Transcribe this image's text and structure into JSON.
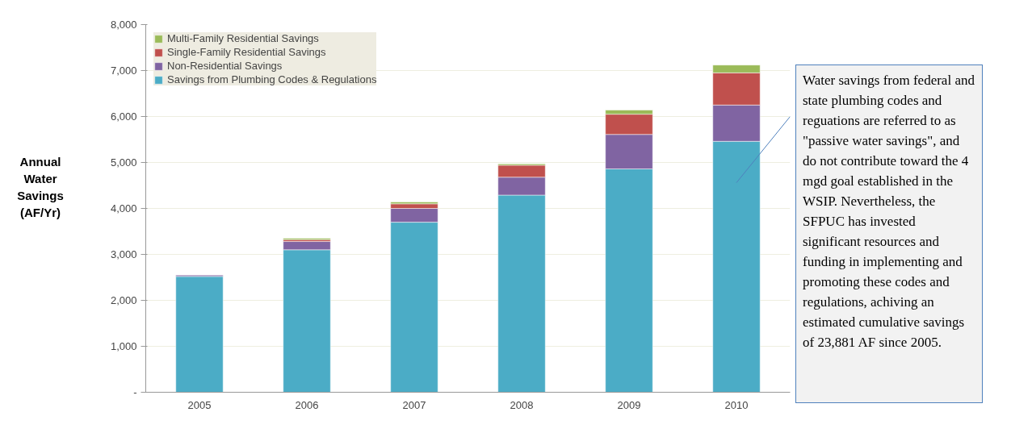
{
  "chart_data": {
    "type": "bar",
    "stacked": true,
    "ylabel": "Annual Water Savings (AF/Yr)",
    "categories": [
      "2005",
      "2006",
      "2007",
      "2008",
      "2009",
      "2010"
    ],
    "series": [
      {
        "name": "Savings from Plumbing Codes & Regulations",
        "color": "#4bacc6",
        "values": [
          2520,
          3100,
          3700,
          4290,
          4860,
          5460
        ]
      },
      {
        "name": "Non-Residential Savings",
        "color": "#8064a2",
        "values": [
          30,
          180,
          300,
          390,
          750,
          790
        ]
      },
      {
        "name": "Single-Family Residential Savings",
        "color": "#c0504d",
        "values": [
          null,
          40,
          100,
          260,
          440,
          700
        ]
      },
      {
        "name": "Multi-Family Residential Savings",
        "color": "#9bbb59",
        "values": [
          null,
          30,
          40,
          30,
          90,
          170
        ]
      }
    ],
    "ylim": [
      0,
      8000
    ],
    "yticks": [
      {
        "value": 0,
        "label": "-"
      },
      {
        "value": 1000,
        "label": "1,000"
      },
      {
        "value": 2000,
        "label": "2,000"
      },
      {
        "value": 3000,
        "label": "3,000"
      },
      {
        "value": 4000,
        "label": "4,000"
      },
      {
        "value": 5000,
        "label": "5,000"
      },
      {
        "value": 6000,
        "label": "6,000"
      },
      {
        "value": 7000,
        "label": "7,000"
      },
      {
        "value": 8000,
        "label": "8,000"
      }
    ],
    "grid": "y",
    "legend": "top left",
    "annotations": [
      "Water savings from federal and state plumbing codes and reguations are referred to as \"passive water savings\", and do not contribute toward the 4 mgd goal established in the WSIP. Nevertheless, the SFPUC has invested significant resources and funding in implementing and promoting these codes and regulations, achiving an estimated cumulative savings of 23,881 AF since 2005."
    ]
  }
}
